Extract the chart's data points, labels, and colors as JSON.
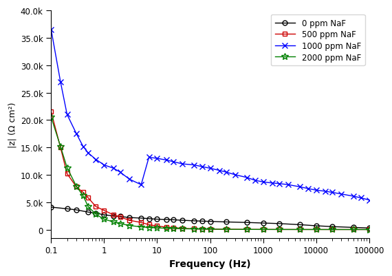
{
  "title": "",
  "xlabel": "Frequency (Hz)",
  "ylabel": "|z| (Ω cm²)",
  "xlim": [
    0.1,
    100000
  ],
  "ylim": [
    -1500,
    40000
  ],
  "yticks": [
    0,
    5000,
    10000,
    15000,
    20000,
    25000,
    30000,
    35000,
    40000
  ],
  "ytick_labels": [
    "0",
    "5.0k",
    "10.0k",
    "15.0k",
    "20.0k",
    "25.0k",
    "30.0k",
    "35.0k",
    "40.0k"
  ],
  "series": [
    {
      "label": "0 ppm NaF",
      "color": "black",
      "marker": "o",
      "markersize": 5,
      "linewidth": 1.0,
      "freq": [
        0.1,
        0.2,
        0.3,
        0.5,
        0.7,
        1.0,
        1.5,
        2.0,
        3.0,
        5.0,
        7.0,
        10.0,
        15.0,
        20.0,
        30.0,
        50.0,
        70.0,
        100.0,
        200.0,
        500.0,
        1000.0,
        2000.0,
        5000.0,
        10000.0,
        20000.0,
        50000.0,
        100000.0
      ],
      "z": [
        4100,
        3800,
        3600,
        3200,
        3000,
        2700,
        2500,
        2400,
        2200,
        2100,
        2000,
        1900,
        1850,
        1800,
        1700,
        1600,
        1550,
        1500,
        1400,
        1300,
        1200,
        1100,
        900,
        700,
        550,
        400,
        300
      ]
    },
    {
      "label": "500 ppm NaF",
      "color": "#cc0000",
      "marker": "s",
      "markersize": 5,
      "linewidth": 1.0,
      "freq": [
        0.1,
        0.15,
        0.2,
        0.3,
        0.4,
        0.5,
        0.7,
        1.0,
        1.5,
        2.0,
        3.0,
        5.0,
        7.0,
        10.0,
        15.0,
        20.0,
        30.0,
        50.0,
        70.0,
        100.0,
        200.0,
        500.0,
        1000.0,
        2000.0,
        5000.0,
        10000.0,
        20000.0,
        50000.0,
        100000.0
      ],
      "z": [
        21500,
        15000,
        10200,
        7800,
        6800,
        5800,
        4200,
        3500,
        2700,
        2300,
        1700,
        1300,
        900,
        650,
        450,
        350,
        230,
        150,
        110,
        85,
        60,
        40,
        30,
        25,
        20,
        18,
        16,
        14,
        12
      ]
    },
    {
      "label": "1000 ppm NaF",
      "color": "blue",
      "marker": "x",
      "markersize": 6,
      "linewidth": 1.0,
      "freq": [
        0.1,
        0.15,
        0.2,
        0.3,
        0.4,
        0.5,
        0.7,
        1.0,
        1.5,
        2.0,
        3.0,
        5.0,
        7.0,
        10.0,
        15.0,
        20.0,
        30.0,
        50.0,
        70.0,
        100.0,
        150.0,
        200.0,
        300.0,
        500.0,
        700.0,
        1000.0,
        1500.0,
        2000.0,
        3000.0,
        5000.0,
        7000.0,
        10000.0,
        15000.0,
        20000.0,
        30000.0,
        50000.0,
        70000.0,
        100000.0
      ],
      "z": [
        36500,
        27000,
        21000,
        17500,
        15200,
        14000,
        12800,
        11800,
        11200,
        10500,
        9200,
        8200,
        13200,
        13000,
        12700,
        12400,
        12000,
        11800,
        11500,
        11200,
        10800,
        10500,
        10000,
        9500,
        9000,
        8700,
        8500,
        8400,
        8200,
        7800,
        7500,
        7200,
        7000,
        6800,
        6500,
        6100,
        5800,
        5400
      ]
    },
    {
      "label": "2000 ppm NaF",
      "color": "green",
      "marker": "*",
      "markersize": 7,
      "linewidth": 1.0,
      "freq": [
        0.1,
        0.15,
        0.2,
        0.3,
        0.4,
        0.5,
        0.7,
        1.0,
        1.5,
        2.0,
        3.0,
        5.0,
        7.0,
        10.0,
        15.0,
        20.0,
        30.0,
        50.0,
        70.0,
        100.0,
        200.0,
        500.0,
        1000.0,
        2000.0,
        5000.0,
        10000.0,
        20000.0,
        50000.0,
        100000.0
      ],
      "z": [
        20500,
        15200,
        11300,
        7900,
        6200,
        4200,
        2800,
        1900,
        1400,
        1100,
        750,
        500,
        380,
        310,
        250,
        200,
        160,
        120,
        95,
        75,
        55,
        38,
        28,
        22,
        18,
        16,
        14,
        12,
        10
      ]
    }
  ],
  "legend_loc": "upper right",
  "background_color": "#ffffff",
  "grid": false
}
